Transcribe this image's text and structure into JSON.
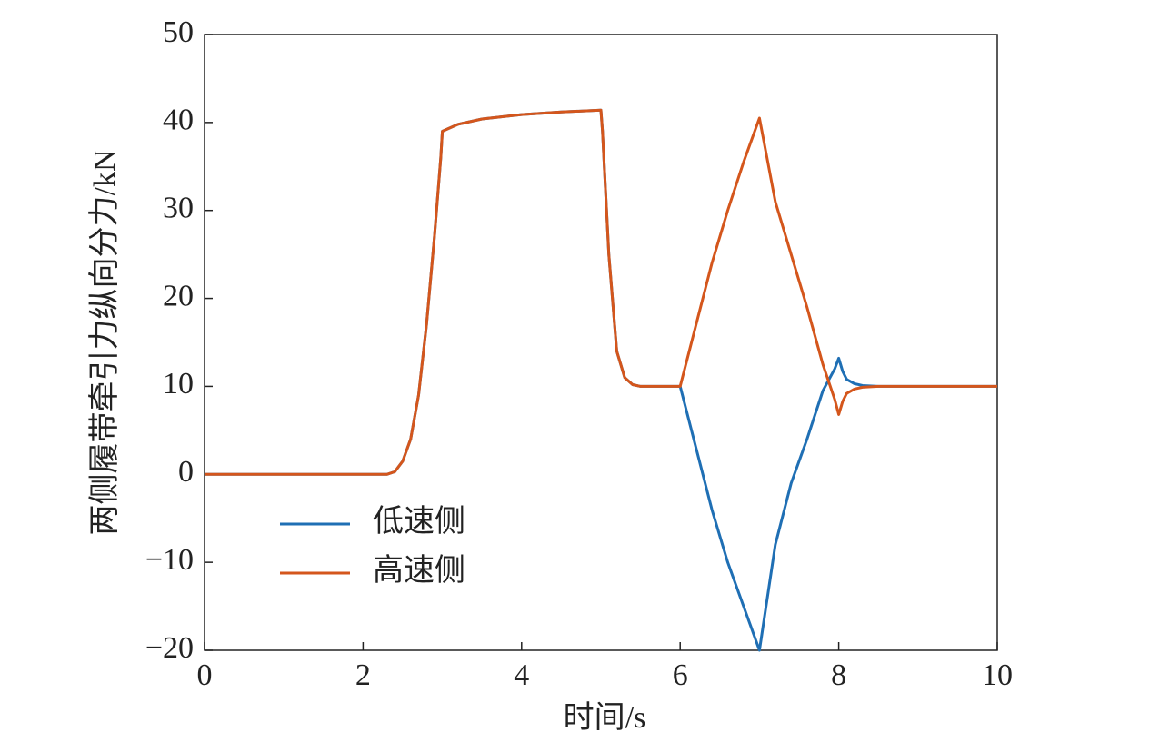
{
  "chart_data": {
    "type": "line",
    "x_label": "时间/s",
    "y_label": "两侧履带牵引力纵向分力/kN",
    "x": [
      0,
      2.3,
      2.4,
      2.5,
      2.6,
      2.7,
      2.8,
      2.9,
      2.98,
      3.0,
      3.2,
      3.5,
      4,
      4.5,
      5.0,
      5.02,
      5.1,
      5.2,
      5.3,
      5.4,
      5.5,
      6.0,
      6.2,
      6.4,
      6.6,
      6.8,
      7.0,
      7.2,
      7.4,
      7.6,
      7.8,
      7.95,
      8.0,
      8.05,
      8.1,
      8.2,
      8.3,
      8.5,
      9,
      10
    ],
    "series": [
      {
        "name": "低速侧",
        "color": "#1f6fb4",
        "values": [
          0,
          0,
          0.3,
          1.5,
          4,
          9,
          17,
          27,
          36,
          39,
          39.8,
          40.4,
          40.9,
          41.2,
          41.4,
          39,
          25,
          14,
          11,
          10.2,
          10,
          10,
          3,
          -4,
          -10,
          -15,
          -20,
          -8,
          -1,
          4,
          9.5,
          12,
          13.2,
          11.7,
          10.8,
          10.3,
          10.1,
          10,
          10,
          10
        ]
      },
      {
        "name": "高速侧",
        "color": "#d4561c",
        "values": [
          0,
          0,
          0.3,
          1.5,
          4,
          9,
          17,
          27,
          36,
          39,
          39.8,
          40.4,
          40.9,
          41.2,
          41.4,
          39,
          25,
          14,
          11,
          10.2,
          10,
          10,
          17,
          24,
          30,
          35.5,
          40.5,
          31,
          25,
          19,
          12.5,
          8.5,
          6.8,
          8.3,
          9.2,
          9.7,
          9.9,
          10,
          10,
          10
        ]
      }
    ],
    "xlim": [
      0,
      10
    ],
    "xticks": [
      0,
      2,
      4,
      6,
      8,
      10
    ],
    "ylim": [
      -20,
      50
    ],
    "yticks": [
      {
        "value": -20,
        "label": "−20"
      },
      {
        "value": -10,
        "label": "−10"
      },
      0,
      10,
      20,
      30,
      40,
      50
    ],
    "legend": "lower left"
  }
}
